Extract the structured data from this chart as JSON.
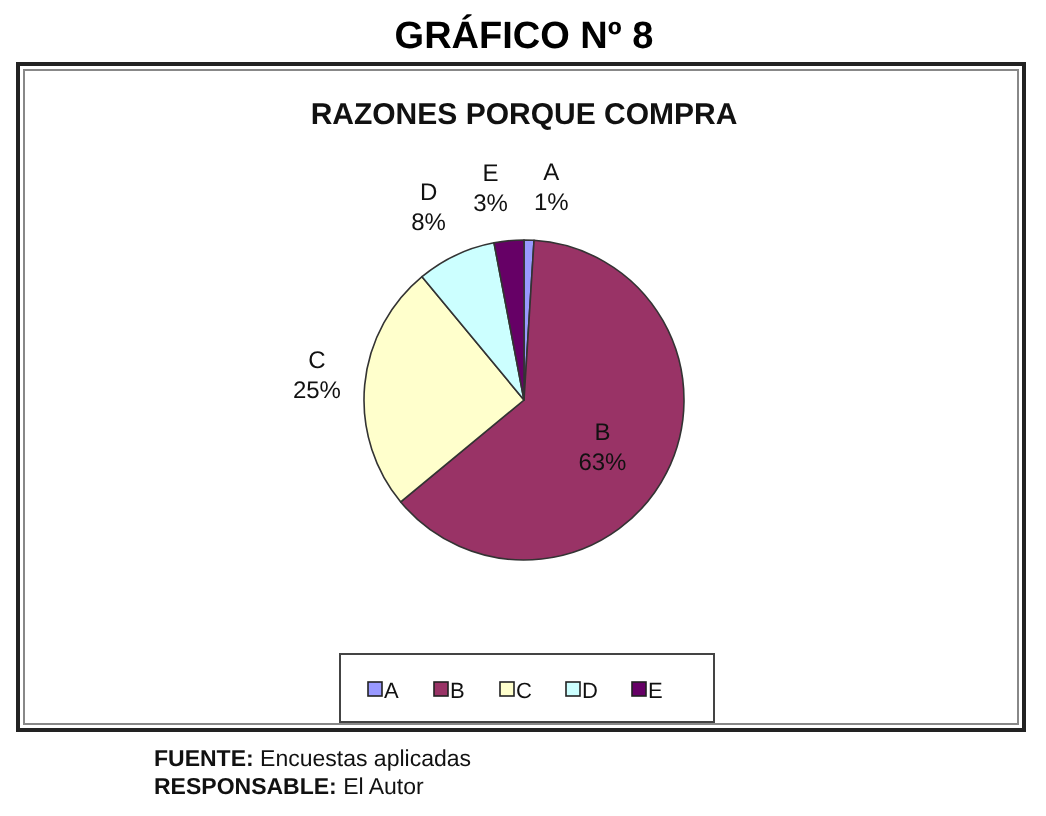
{
  "chart_data": {
    "type": "pie",
    "title": "GRÁFICO Nº 8",
    "subtitle": "RAZONES PORQUE COMPRA",
    "categories": [
      "A",
      "B",
      "C",
      "D",
      "E"
    ],
    "values": [
      1,
      63,
      25,
      8,
      3
    ],
    "value_labels": [
      "1%",
      "63%",
      "25%",
      "8%",
      "3%"
    ],
    "colors": [
      "#9999ff",
      "#993366",
      "#ffffcc",
      "#ccffff",
      "#660066"
    ],
    "legend": "bottom",
    "annotations": [
      "FUENTE: Encuestas aplicadas",
      "RESPONSABLE: El Autor"
    ]
  }
}
